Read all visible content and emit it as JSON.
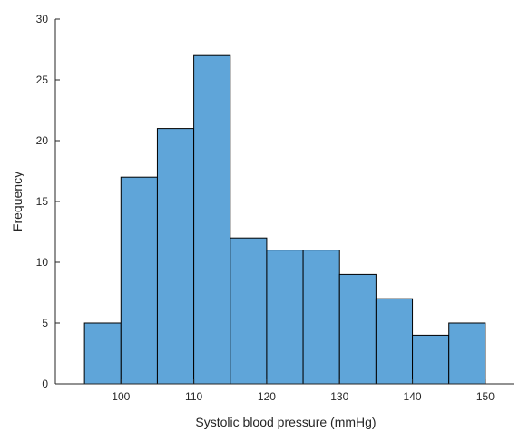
{
  "chart_data": {
    "type": "bar",
    "title": "",
    "xlabel": "Systolic blood pressure (mmHg)",
    "ylabel": "Frequency",
    "bin_edges": [
      95,
      100,
      105,
      110,
      115,
      120,
      125,
      130,
      135,
      140,
      145,
      150
    ],
    "values": [
      5,
      17,
      21,
      27,
      12,
      11,
      11,
      9,
      7,
      4,
      5
    ],
    "xlim": [
      91,
      154
    ],
    "ylim": [
      0,
      30
    ],
    "x_ticks": [
      100,
      110,
      120,
      130,
      140,
      150
    ],
    "y_ticks": [
      0,
      5,
      10,
      15,
      20,
      25,
      30
    ],
    "grid": false,
    "legend": "none",
    "bar_color": "#5fa5d9",
    "edge_color": "#000000"
  }
}
